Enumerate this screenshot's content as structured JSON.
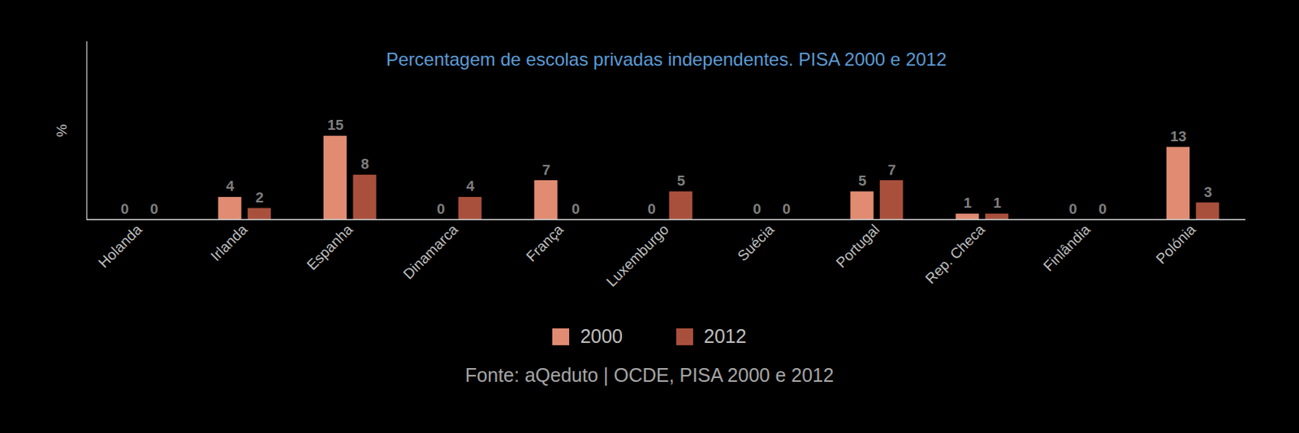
{
  "chart_data": {
    "type": "bar",
    "title": "Percentagem de escolas privadas independentes. PISA 2000 e 2012",
    "y_label": "%",
    "categories": [
      "Holanda",
      "Irlanda",
      "Espanha",
      "Dinamarca",
      "França",
      "Luxemburgo",
      "Suécia",
      "Portugal",
      "Rep. Checa",
      "Finlândia",
      "Polónia"
    ],
    "series": [
      {
        "name": "2000",
        "color": "#e08b72",
        "values": [
          0,
          4,
          15,
          0,
          7,
          0,
          0,
          5,
          1,
          0,
          13
        ]
      },
      {
        "name": "2012",
        "color": "#a9503d",
        "values": [
          0,
          2,
          8,
          4,
          0,
          5,
          0,
          7,
          1,
          0,
          3
        ]
      }
    ],
    "ylim": [
      0,
      32
    ],
    "yticks": [],
    "data_labels": true,
    "tick_labels": "x",
    "legend": "bottom",
    "grid": false,
    "source": "Fonte: aQeduto | OCDE, PISA 2000 e 2012"
  }
}
